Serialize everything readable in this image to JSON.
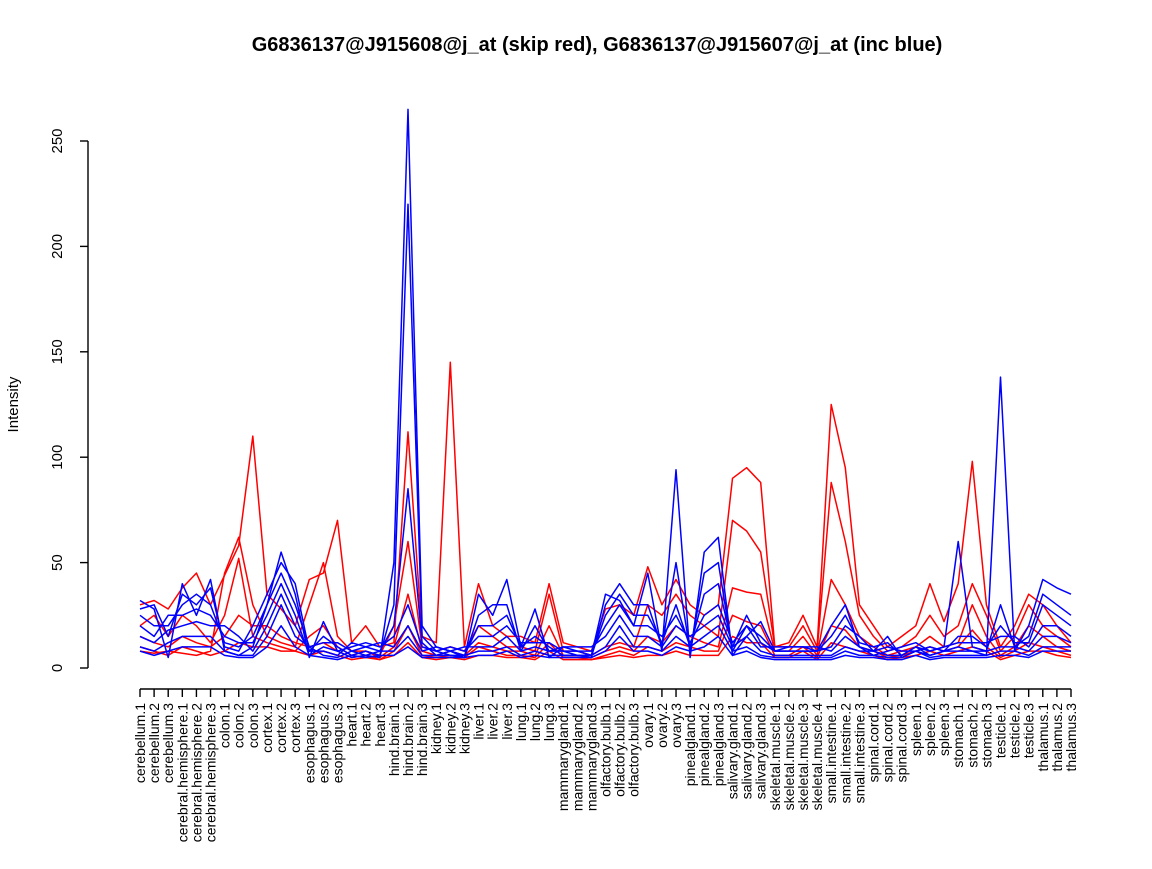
{
  "chart_data": {
    "type": "line",
    "title": "G6836137@J915608@j_at (skip red), G6836137@J915607@j_at (inc blue)",
    "xlabel": "",
    "ylabel": "Intensity",
    "ylim": [
      0,
      250
    ],
    "yticks": [
      0,
      50,
      100,
      150,
      200,
      250
    ],
    "grid": false,
    "legend": "none",
    "colors": {
      "skip": "#ff0000",
      "inc": "#0000ff",
      "axis": "#000000"
    },
    "categories": [
      "cerebellum.1",
      "cerebellum.2",
      "cerebellum.3",
      "cerebral.hemisphere.1",
      "cerebral.hemisphere.2",
      "cerebral.hemisphere.3",
      "colon.1",
      "colon.2",
      "colon.3",
      "cortex.1",
      "cortex.2",
      "cortex.3",
      "esophagus.1",
      "esophagus.2",
      "esophagus.3",
      "heart.1",
      "heart.2",
      "heart.3",
      "hind.brain.1",
      "hind.brain.2",
      "hind.brain.3",
      "kidney.1",
      "kidney.2",
      "kidney.3",
      "liver.1",
      "liver.2",
      "liver.3",
      "lung.1",
      "lung.2",
      "lung.3",
      "mammarygland.1",
      "mammarygland.2",
      "mammarygland.3",
      "olfactory.bulb.1",
      "olfactory.bulb.2",
      "olfactory.bulb.3",
      "ovary.1",
      "ovary.2",
      "ovary.3",
      "pinealgland.1",
      "pinealgland.2",
      "pinealgland.3",
      "salivary.gland.1",
      "salivary.gland.2",
      "salivary.gland.3",
      "skeletal.muscle.1",
      "skeletal.muscle.2",
      "skeletal.muscle.3",
      "skeletal.muscle.4",
      "small.intestine.1",
      "small.intestine.2",
      "small.intestine.3",
      "spinal.cord.1",
      "spinal.cord.2",
      "spinal.cord.3",
      "spleen.1",
      "spleen.2",
      "spleen.3",
      "stomach.1",
      "stomach.2",
      "stomach.3",
      "testicle.1",
      "testicle.2",
      "testicle.3",
      "thalamus.1",
      "thalamus.2",
      "thalamus.3"
    ],
    "series": [
      {
        "group": "skip",
        "values": [
          30,
          32,
          28,
          38,
          45,
          30,
          44,
          58,
          110,
          35,
          28,
          20,
          42,
          45,
          70,
          12,
          20,
          10,
          12,
          112,
          15,
          12,
          145,
          10,
          40,
          20,
          15,
          15,
          12,
          40,
          12,
          10,
          8,
          28,
          30,
          25,
          48,
          30,
          42,
          30,
          25,
          30,
          90,
          95,
          88,
          10,
          12,
          25,
          10,
          125,
          95,
          30,
          20,
          10,
          15,
          20,
          40,
          22,
          40,
          98,
          30,
          10,
          20,
          35,
          30,
          20,
          12
        ]
      },
      {
        "group": "skip",
        "values": [
          8,
          7,
          8,
          7,
          6,
          8,
          45,
          62,
          30,
          15,
          12,
          10,
          30,
          50,
          15,
          8,
          8,
          6,
          20,
          60,
          10,
          8,
          10,
          8,
          20,
          15,
          10,
          10,
          8,
          35,
          8,
          8,
          6,
          10,
          12,
          10,
          30,
          25,
          35,
          25,
          20,
          15,
          70,
          65,
          55,
          10,
          10,
          20,
          8,
          88,
          60,
          25,
          15,
          8,
          10,
          15,
          25,
          15,
          20,
          40,
          25,
          8,
          15,
          30,
          20,
          15,
          10
        ]
      },
      {
        "group": "skip",
        "values": [
          20,
          25,
          15,
          25,
          20,
          12,
          25,
          52,
          15,
          12,
          10,
          8,
          15,
          20,
          10,
          6,
          8,
          5,
          10,
          35,
          8,
          6,
          8,
          6,
          12,
          10,
          8,
          8,
          6,
          20,
          6,
          6,
          5,
          8,
          10,
          8,
          15,
          12,
          20,
          15,
          12,
          10,
          38,
          36,
          35,
          8,
          8,
          15,
          6,
          42,
          30,
          15,
          10,
          6,
          8,
          10,
          15,
          10,
          12,
          30,
          15,
          6,
          10,
          20,
          15,
          10,
          8
        ]
      },
      {
        "group": "skip",
        "values": [
          15,
          12,
          10,
          15,
          12,
          10,
          15,
          25,
          20,
          20,
          15,
          12,
          10,
          12,
          8,
          5,
          6,
          4,
          8,
          20,
          6,
          5,
          6,
          5,
          10,
          8,
          6,
          6,
          5,
          12,
          5,
          5,
          4,
          6,
          8,
          6,
          10,
          8,
          12,
          10,
          8,
          8,
          25,
          22,
          20,
          6,
          6,
          10,
          5,
          20,
          18,
          10,
          8,
          5,
          6,
          8,
          10,
          8,
          10,
          18,
          10,
          5,
          8,
          12,
          10,
          8,
          6
        ]
      },
      {
        "group": "skip",
        "values": [
          10,
          8,
          6,
          10,
          8,
          6,
          8,
          12,
          10,
          10,
          8,
          8,
          6,
          8,
          6,
          4,
          5,
          4,
          6,
          12,
          5,
          4,
          5,
          4,
          6,
          6,
          5,
          5,
          4,
          8,
          4,
          4,
          4,
          5,
          6,
          5,
          6,
          6,
          8,
          6,
          6,
          6,
          15,
          12,
          12,
          5,
          5,
          8,
          4,
          12,
          10,
          8,
          6,
          4,
          5,
          6,
          8,
          6,
          8,
          10,
          8,
          4,
          6,
          8,
          8,
          6,
          5
        ]
      },
      {
        "group": "inc",
        "values": [
          32,
          28,
          5,
          40,
          25,
          42,
          8,
          6,
          10,
          30,
          55,
          35,
          5,
          22,
          8,
          5,
          6,
          5,
          50,
          265,
          20,
          10,
          8,
          5,
          35,
          25,
          42,
          10,
          28,
          5,
          10,
          8,
          6,
          35,
          32,
          20,
          45,
          8,
          94,
          5,
          55,
          62,
          6,
          15,
          22,
          8,
          10,
          10,
          8,
          20,
          30,
          10,
          8,
          15,
          5,
          8,
          6,
          8,
          10,
          8,
          6,
          138,
          8,
          20,
          42,
          38,
          35
        ]
      },
      {
        "group": "inc",
        "values": [
          28,
          30,
          15,
          35,
          30,
          38,
          10,
          8,
          20,
          35,
          50,
          40,
          8,
          15,
          10,
          6,
          8,
          6,
          30,
          220,
          15,
          8,
          6,
          5,
          25,
          30,
          30,
          8,
          20,
          8,
          8,
          6,
          5,
          30,
          40,
          30,
          30,
          10,
          50,
          8,
          45,
          50,
          8,
          20,
          15,
          8,
          8,
          8,
          8,
          15,
          25,
          12,
          10,
          12,
          6,
          10,
          8,
          10,
          60,
          10,
          8,
          30,
          10,
          15,
          35,
          30,
          25
        ]
      },
      {
        "group": "inc",
        "values": [
          25,
          20,
          20,
          30,
          35,
          30,
          12,
          10,
          15,
          30,
          45,
          30,
          10,
          12,
          12,
          8,
          10,
          8,
          20,
          85,
          12,
          6,
          8,
          6,
          20,
          20,
          25,
          10,
          15,
          10,
          6,
          6,
          6,
          25,
          35,
          25,
          25,
          12,
          30,
          10,
          35,
          40,
          10,
          25,
          12,
          8,
          8,
          8,
          8,
          10,
          20,
          15,
          8,
          10,
          8,
          8,
          10,
          8,
          15,
          15,
          10,
          20,
          12,
          12,
          30,
          25,
          20
        ]
      },
      {
        "group": "inc",
        "values": [
          20,
          15,
          25,
          25,
          28,
          25,
          15,
          12,
          12,
          25,
          40,
          25,
          6,
          10,
          8,
          10,
          12,
          10,
          15,
          30,
          10,
          8,
          10,
          8,
          15,
          15,
          20,
          12,
          12,
          12,
          8,
          8,
          8,
          20,
          30,
          20,
          20,
          15,
          25,
          12,
          25,
          30,
          12,
          20,
          10,
          10,
          10,
          10,
          10,
          8,
          15,
          10,
          6,
          8,
          10,
          12,
          8,
          10,
          12,
          12,
          12,
          15,
          15,
          10,
          20,
          20,
          15
        ]
      },
      {
        "group": "inc",
        "values": [
          15,
          12,
          18,
          20,
          22,
          20,
          20,
          15,
          8,
          20,
          35,
          20,
          8,
          8,
          6,
          12,
          10,
          12,
          10,
          20,
          8,
          10,
          8,
          10,
          10,
          10,
          15,
          8,
          10,
          8,
          10,
          10,
          10,
          15,
          25,
          15,
          15,
          10,
          20,
          15,
          20,
          25,
          10,
          15,
          8,
          6,
          6,
          6,
          6,
          6,
          10,
          8,
          8,
          6,
          6,
          10,
          6,
          8,
          8,
          8,
          8,
          10,
          10,
          8,
          15,
          15,
          12
        ]
      },
      {
        "group": "inc",
        "values": [
          10,
          8,
          12,
          15,
          15,
          15,
          8,
          6,
          6,
          15,
          30,
          15,
          10,
          6,
          5,
          8,
          6,
          8,
          8,
          15,
          6,
          6,
          6,
          6,
          8,
          8,
          10,
          6,
          8,
          6,
          6,
          6,
          6,
          10,
          20,
          10,
          10,
          8,
          15,
          10,
          15,
          20,
          8,
          10,
          6,
          5,
          5,
          5,
          5,
          5,
          8,
          6,
          6,
          5,
          5,
          8,
          5,
          6,
          6,
          6,
          6,
          8,
          8,
          6,
          10,
          10,
          10
        ]
      },
      {
        "group": "inc",
        "values": [
          8,
          6,
          8,
          10,
          10,
          10,
          6,
          5,
          5,
          10,
          20,
          10,
          6,
          5,
          4,
          6,
          5,
          6,
          6,
          10,
          5,
          5,
          5,
          5,
          6,
          6,
          8,
          5,
          6,
          5,
          5,
          5,
          5,
          8,
          15,
          8,
          8,
          6,
          10,
          8,
          10,
          15,
          6,
          8,
          5,
          4,
          4,
          4,
          4,
          4,
          6,
          5,
          5,
          4,
          4,
          6,
          4,
          5,
          5,
          5,
          5,
          6,
          6,
          5,
          8,
          8,
          8
        ]
      }
    ]
  }
}
